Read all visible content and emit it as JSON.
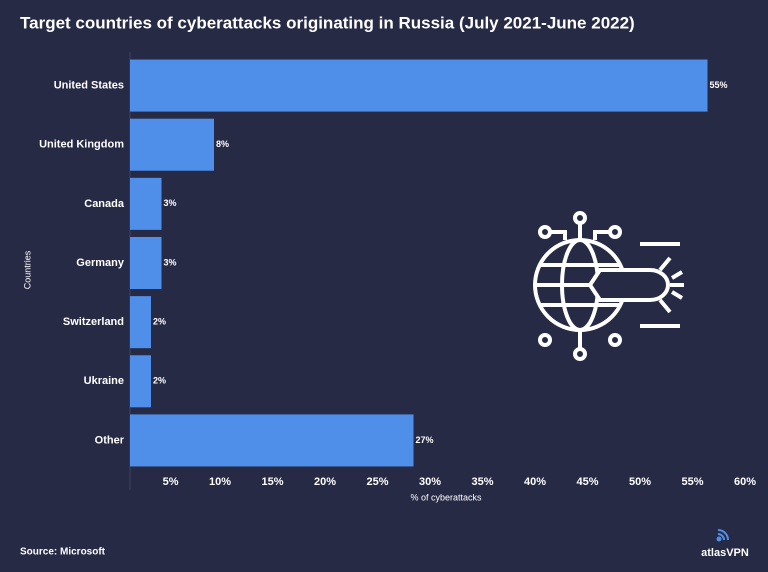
{
  "chart_data": {
    "type": "bar",
    "orientation": "horizontal",
    "title": "Target countries of cyberattacks originating in Russia (July 2021-June 2022)",
    "categories": [
      "United States",
      "United Kingdom",
      "Canada",
      "Germany",
      "Switzerland",
      "Ukraine",
      "Other"
    ],
    "values": [
      55,
      8,
      3,
      3,
      2,
      2,
      27
    ],
    "value_labels": [
      "55%",
      "8%",
      "3%",
      "3%",
      "2%",
      "2%",
      "27%"
    ],
    "color": "#4f8fea",
    "xlim": [
      0,
      60
    ],
    "xticks": [
      {
        "value": 5,
        "label": "5%"
      },
      {
        "value": 10,
        "label": "10%"
      },
      {
        "value": 15,
        "label": "15%"
      },
      {
        "value": 20,
        "label": "20%"
      },
      {
        "value": 25,
        "label": "25%"
      },
      {
        "value": 30,
        "label": "30%"
      },
      {
        "value": 35,
        "label": "35%"
      },
      {
        "value": 40,
        "label": "40%"
      },
      {
        "value": 45,
        "label": "45%"
      },
      {
        "value": 50,
        "label": "50%"
      },
      {
        "value": 55,
        "label": "55%"
      },
      {
        "value": 60,
        "label": "60%"
      }
    ],
    "xlabel": "% of cyberattacks",
    "ylabel": "Countries"
  },
  "source": "Source: Microsoft",
  "brand": "atlasVPN"
}
